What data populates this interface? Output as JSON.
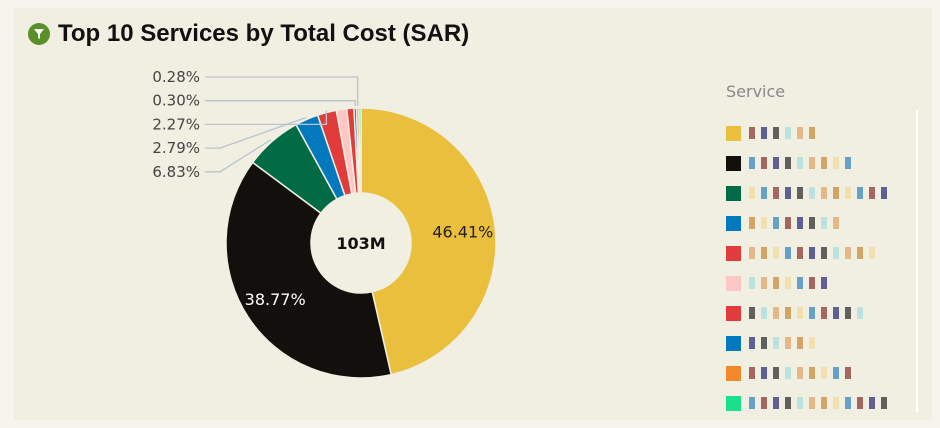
{
  "title": "Top 10 Services by Total Cost (SAR)",
  "title_icon": "filter-icon",
  "chart_data": {
    "type": "donut",
    "title": "Top 10 Services by Total Cost (SAR)",
    "center_label": "103M",
    "legend_title": "Service",
    "legend_placement": "right",
    "slices": [
      {
        "value": 46.41,
        "label": "46.41%",
        "color": "#ebbf3e"
      },
      {
        "value": 38.77,
        "label": "38.77%",
        "color": "#120f0d"
      },
      {
        "value": 6.83,
        "label": "6.83%",
        "color": "#006b45"
      },
      {
        "value": 2.79,
        "label": "2.79%",
        "color": "#0278bd"
      },
      {
        "value": 2.27,
        "label": "2.27%",
        "color": "#e03c3c"
      },
      {
        "value": 1.25,
        "label": "",
        "color": "#ffc6c6"
      },
      {
        "value": 0.85,
        "label": "",
        "color": "#e03c3c"
      },
      {
        "value": 0.3,
        "label": "0.30%",
        "color": "#0278bd"
      },
      {
        "value": 0.28,
        "label": "0.28%",
        "color": "#f3892a"
      },
      {
        "value": 0.25,
        "label": "",
        "color": "#19e08a"
      }
    ]
  }
}
